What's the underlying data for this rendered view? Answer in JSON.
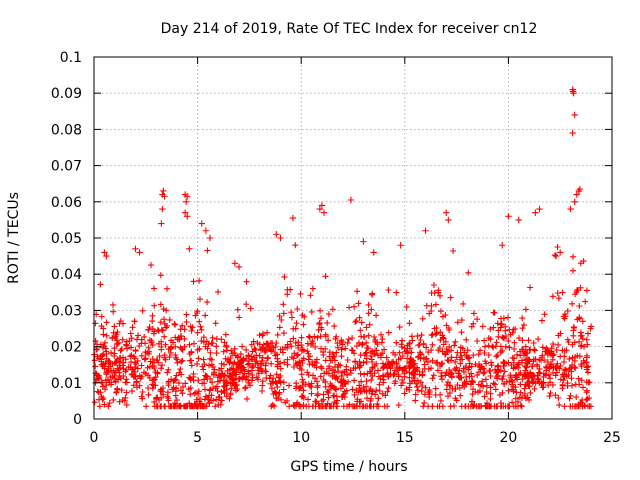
{
  "chart_data": {
    "type": "scatter",
    "title": "Day 214 of 2019, Rate Of TEC Index for receiver cn12",
    "xlabel": "GPS time / hours",
    "ylabel": "ROTI / TECUs",
    "xlim": [
      0,
      25
    ],
    "ylim": [
      0,
      0.1
    ],
    "x_ticks": [
      0,
      5,
      10,
      15,
      20,
      25
    ],
    "x_tick_labels": [
      "0",
      "5",
      "10",
      "15",
      "20",
      "25"
    ],
    "y_ticks": [
      0,
      0.01,
      0.02,
      0.03,
      0.04,
      0.05,
      0.06,
      0.07,
      0.08,
      0.09,
      0.1
    ],
    "y_tick_labels": [
      "0",
      "0.01",
      "0.02",
      "0.03",
      "0.04",
      "0.05",
      "0.06",
      "0.07",
      "0.08",
      "0.09",
      "0.1"
    ],
    "grid": true,
    "marker": "plus",
    "marker_color": "#ff0000",
    "series": [
      {
        "name": "ROTI",
        "points": [
          [
            23.1,
            0.091
          ],
          [
            23.12,
            0.0905
          ],
          [
            23.15,
            0.09
          ],
          [
            23.2,
            0.084
          ],
          [
            23.1,
            0.079
          ],
          [
            23.4,
            0.063
          ],
          [
            23.45,
            0.0635
          ],
          [
            23.3,
            0.062
          ],
          [
            23.0,
            0.058
          ],
          [
            23.2,
            0.06
          ],
          [
            3.3,
            0.062
          ],
          [
            3.35,
            0.063
          ],
          [
            3.4,
            0.0615
          ],
          [
            3.3,
            0.058
          ],
          [
            3.25,
            0.054
          ],
          [
            4.4,
            0.062
          ],
          [
            4.5,
            0.0615
          ],
          [
            4.45,
            0.06
          ],
          [
            4.4,
            0.057
          ],
          [
            4.5,
            0.056
          ],
          [
            12.4,
            0.0605
          ],
          [
            11.0,
            0.059
          ],
          [
            11.1,
            0.057
          ],
          [
            9.6,
            0.0555
          ],
          [
            10.9,
            0.058
          ],
          [
            5.2,
            0.054
          ],
          [
            5.4,
            0.052
          ],
          [
            5.6,
            0.05
          ],
          [
            17.0,
            0.057
          ],
          [
            17.1,
            0.055
          ],
          [
            20.0,
            0.056
          ],
          [
            20.5,
            0.055
          ],
          [
            21.3,
            0.057
          ],
          [
            21.5,
            0.058
          ],
          [
            16.0,
            0.052
          ],
          [
            8.8,
            0.051
          ],
          [
            9.0,
            0.05
          ],
          [
            4.6,
            0.047
          ],
          [
            2.0,
            0.047
          ],
          [
            2.2,
            0.046
          ],
          [
            0.5,
            0.046
          ],
          [
            0.6,
            0.045
          ],
          [
            19.7,
            0.048
          ],
          [
            22.3,
            0.045
          ],
          [
            22.5,
            0.046
          ],
          [
            6.8,
            0.043
          ],
          [
            7.0,
            0.042
          ],
          [
            13.0,
            0.049
          ],
          [
            13.5,
            0.046
          ],
          [
            14.8,
            0.048
          ]
        ]
      }
    ]
  }
}
